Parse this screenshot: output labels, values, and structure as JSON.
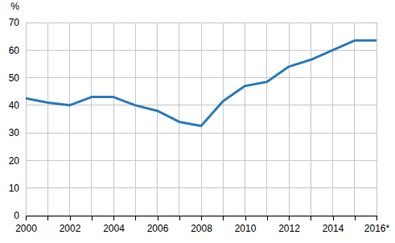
{
  "chart_data": {
    "type": "line",
    "y_label": "%",
    "categories": [
      "2000",
      null,
      "2002",
      null,
      "2004",
      null,
      "2006",
      null,
      "2008",
      null,
      "2010",
      null,
      "2012",
      null,
      "2014",
      null,
      "2016*"
    ],
    "values": [
      42.5,
      41,
      40,
      43,
      43,
      40,
      38,
      34,
      32.5,
      41.5,
      47,
      48.5,
      54,
      56.5,
      60,
      63.5,
      63.5
    ],
    "color": "#2b7bba",
    "ylim": [
      0,
      70
    ],
    "yticks": [
      0,
      10,
      20,
      30,
      40,
      50,
      60,
      70
    ],
    "grid": true
  }
}
